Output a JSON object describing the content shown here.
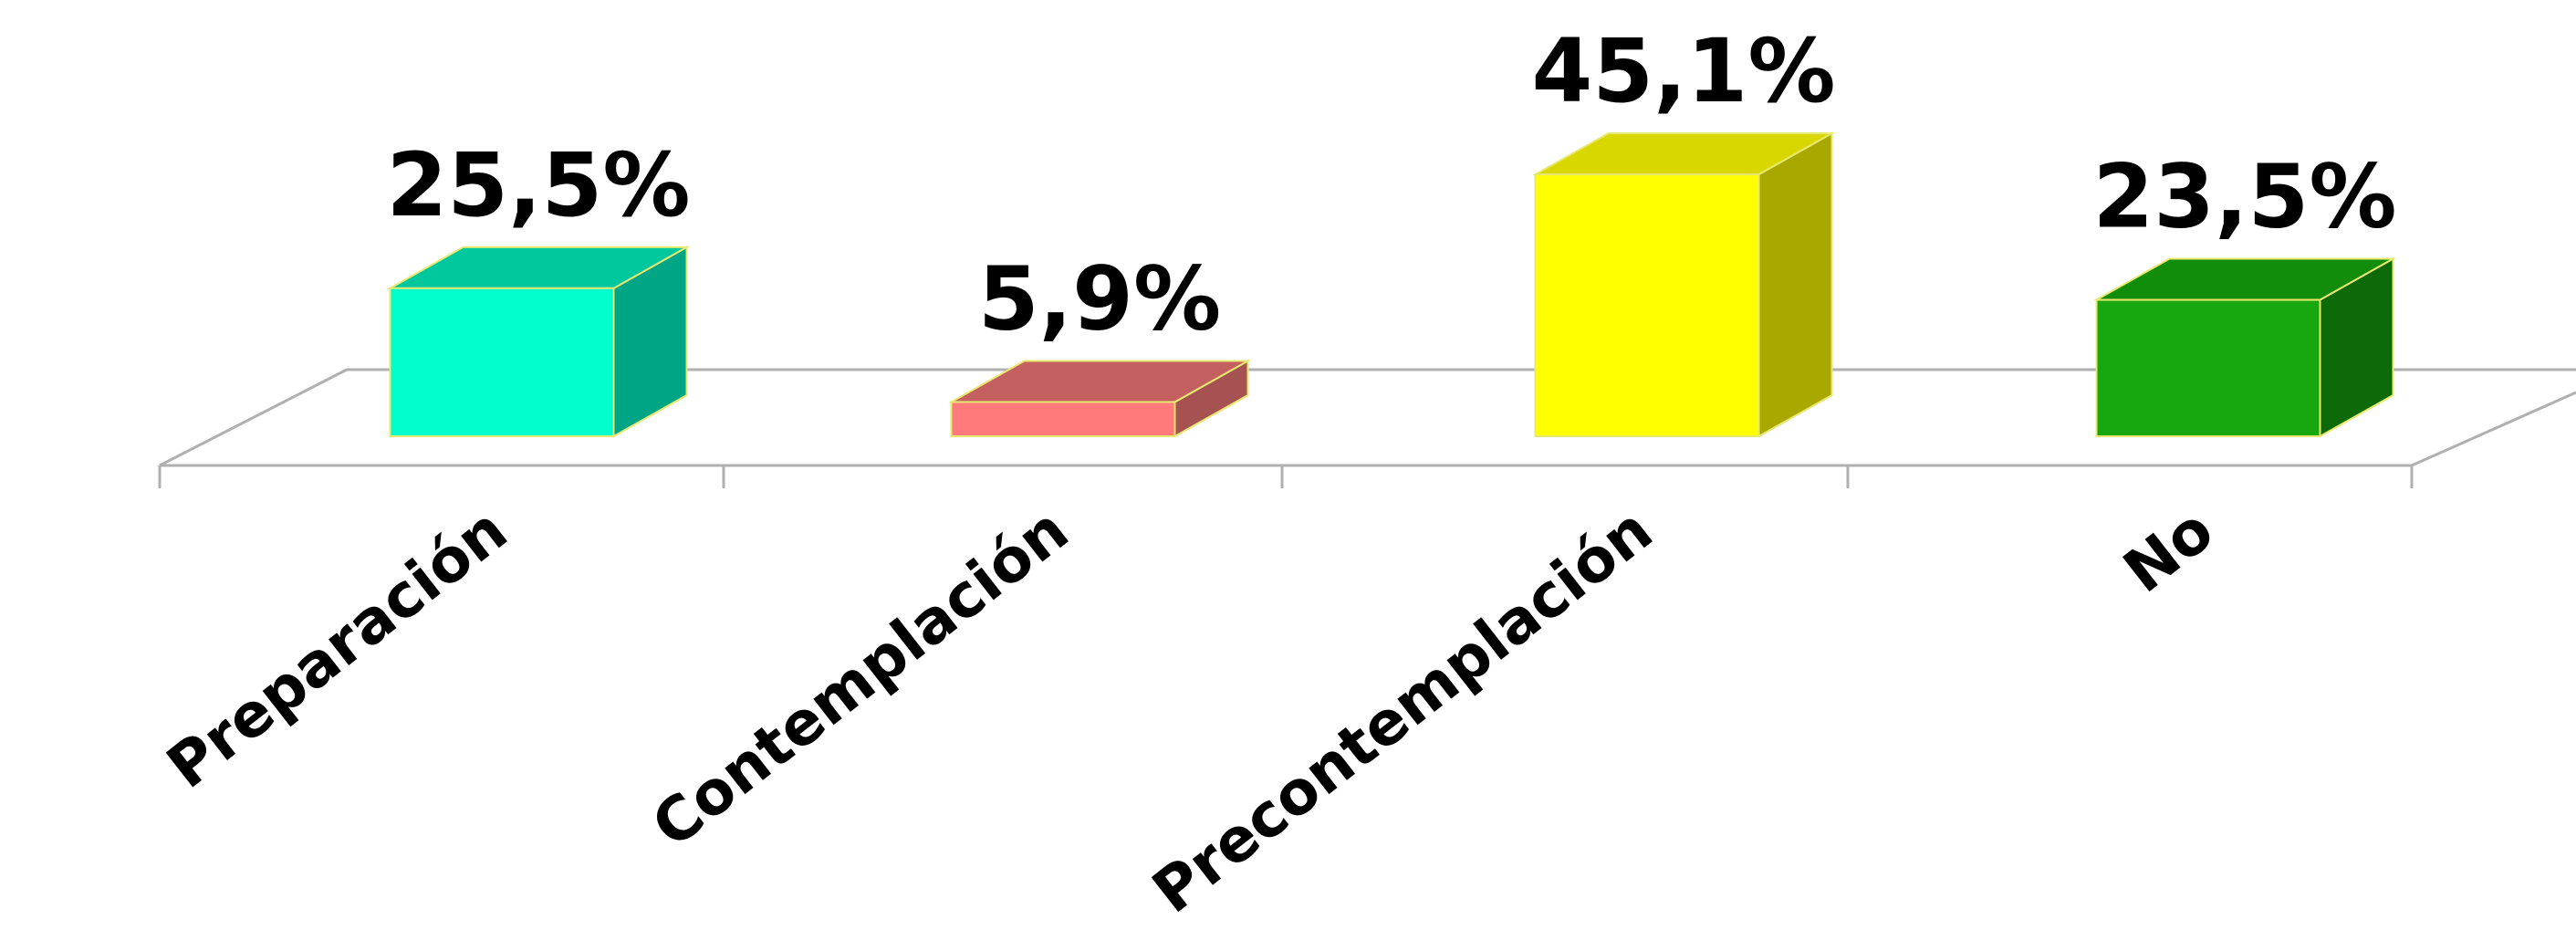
{
  "chart_data": {
    "type": "bar",
    "style": "3d-column",
    "categories": [
      "Preparación",
      "Contemplación",
      "Precontemplación",
      "No"
    ],
    "values": [
      25.5,
      5.9,
      45.1,
      23.5
    ],
    "data_labels": [
      "25,5%",
      "5,9%",
      "45,1%",
      "23,5%"
    ],
    "unit": "%",
    "ylim": [
      0,
      50
    ],
    "grid": false,
    "legend": "none",
    "colors": {
      "front": [
        "#00FFCC",
        "#FF7A7A",
        "#FFFF00",
        "#16A80E"
      ],
      "top": [
        "#00C79E",
        "#C46060",
        "#D8D800",
        "#128C0B"
      ],
      "side": [
        "#00A586",
        "#A65252",
        "#A8A800",
        "#0C6B08"
      ],
      "outline": "#E8E870",
      "floor_line": "#B0B0B0"
    }
  }
}
